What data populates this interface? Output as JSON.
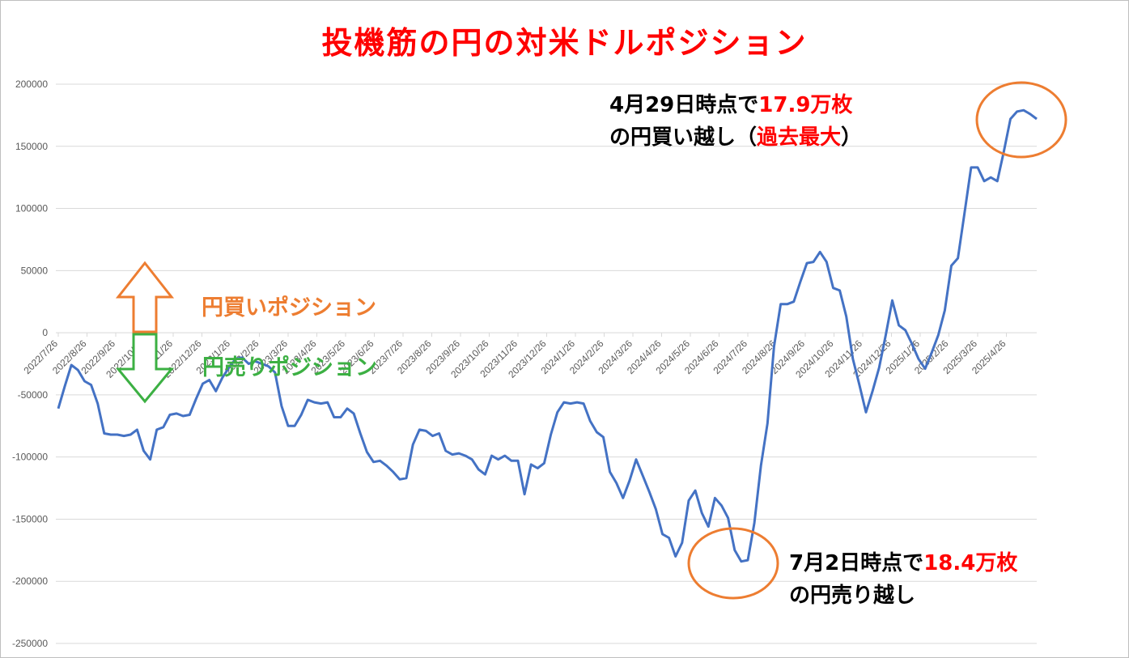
{
  "title": "投機筋の円の対米ドルポジション",
  "colors": {
    "line": "#4472c4",
    "grid": "#d9d9d9",
    "title": "#ff0000",
    "buy": "#ed7d31",
    "sell": "#3cb043",
    "highlight": "#ff0000",
    "circle": "#ed7d31"
  },
  "annotations": {
    "peak": {
      "line1_a": "4月29日時点で",
      "line1_b": "17.9万枚",
      "line2_a": "の円買い越し（",
      "line2_b": "過去最大",
      "line2_c": "）"
    },
    "trough": {
      "line1_a": "7月2日時点で",
      "line1_b": "18.4万枚",
      "line2_a": "の円売り越し"
    },
    "buy_label": "円買いポジション",
    "sell_label": "円売りポジション"
  },
  "chart_data": {
    "type": "line",
    "title": "投機筋の円の対米ドルポジション",
    "ylim": [
      -250000,
      200000
    ],
    "yticks": [
      200000,
      150000,
      100000,
      50000,
      0,
      -50000,
      -100000,
      -150000,
      -200000,
      -250000
    ],
    "xtick_labels": [
      "2022/7/26",
      "2022/8/26",
      "2022/9/26",
      "2022/10/26",
      "2022/11/26",
      "2022/12/26",
      "2023/1/26",
      "2023/2/26",
      "2023/3/26",
      "2023/4/26",
      "2023/5/26",
      "2023/6/26",
      "2023/7/26",
      "2023/8/26",
      "2023/9/26",
      "2023/10/26",
      "2023/11/26",
      "2023/12/26",
      "2024/1/26",
      "2024/2/26",
      "2024/3/26",
      "2024/4/26",
      "2024/5/26",
      "2024/6/26",
      "2024/7/26",
      "2024/8/26",
      "2024/9/26",
      "2024/10/26",
      "2024/11/26",
      "2024/12/26",
      "2025/1/26",
      "2025/2/26",
      "2025/3/26",
      "2025/4/26"
    ],
    "grid": true,
    "legend": "none",
    "series": [
      {
        "values": [
          -61000,
          -43000,
          -26000,
          -30000,
          -39000,
          -42000,
          -57000,
          -81000,
          -82000,
          -82000,
          -83000,
          -82000,
          -78000,
          -95000,
          -102000,
          -78000,
          -76000,
          -66000,
          -65000,
          -67000,
          -66000,
          -53000,
          -41000,
          -38000,
          -47000,
          -36000,
          -28000,
          -21000,
          -20000,
          -25000,
          -23000,
          -25000,
          -27000,
          -32000,
          -59000,
          -75000,
          -75000,
          -66000,
          -54000,
          -56000,
          -57000,
          -56000,
          -68000,
          -68000,
          -61000,
          -65000,
          -81000,
          -96000,
          -104000,
          -103000,
          -107000,
          -112000,
          -118000,
          -117000,
          -90000,
          -78000,
          -79000,
          -83000,
          -81000,
          -95000,
          -98000,
          -97000,
          -99000,
          -102000,
          -110000,
          -114000,
          -99000,
          -102000,
          -99000,
          -103000,
          -103000,
          -130000,
          -106000,
          -109000,
          -105000,
          -82000,
          -64000,
          -56000,
          -57000,
          -56000,
          -57000,
          -71000,
          -80000,
          -84000,
          -112000,
          -121000,
          -133000,
          -119000,
          -102000,
          -115000,
          -128000,
          -142000,
          -162000,
          -165000,
          -180000,
          -169000,
          -135000,
          -127000,
          -145000,
          -156000,
          -133000,
          -139000,
          -149000,
          -175000,
          -184000,
          -183000,
          -153000,
          -107000,
          -73000,
          -11000,
          23000,
          23000,
          25000,
          41000,
          56000,
          57000,
          65000,
          57000,
          36000,
          34000,
          13000,
          -21000,
          -42000,
          -64000,
          -47000,
          -28000,
          -2000,
          26000,
          6000,
          2000,
          -9000,
          -21000,
          -29000,
          -16000,
          -2000,
          18000,
          54000,
          60000,
          96000,
          133000,
          133000,
          122000,
          125000,
          122000,
          146000,
          172000,
          178000,
          179000,
          176000,
          172000
        ]
      }
    ]
  }
}
